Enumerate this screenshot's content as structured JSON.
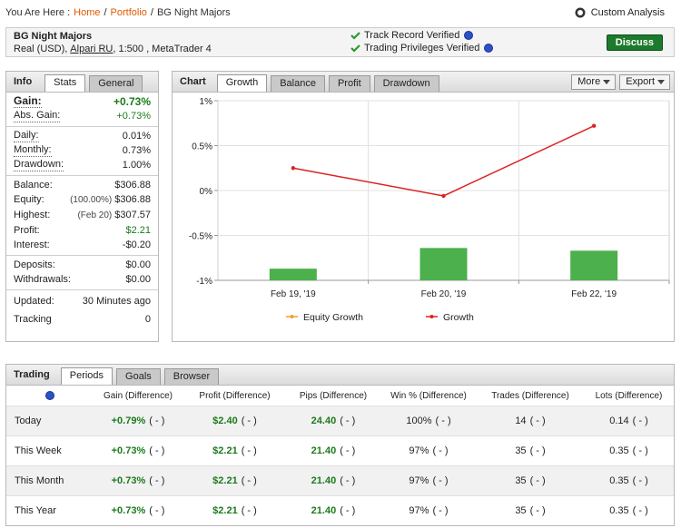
{
  "breadcrumb": {
    "prefix": "You Are Here :",
    "links": [
      "Home",
      "Portfolio"
    ],
    "separator": "/",
    "current": "BG Night Majors"
  },
  "custom_analysis": "Custom Analysis",
  "account": {
    "name": "BG Night Majors",
    "details_pre": "Real (USD),",
    "broker": "Alpari RU",
    "details_post": ", 1:500 , MetaTrader 4",
    "verifications": [
      "Track Record Verified",
      "Trading Privileges Verified"
    ],
    "button": "Discuss"
  },
  "info": {
    "title": "Info",
    "tabs": [
      "Stats",
      "General"
    ],
    "groups": [
      [
        {
          "label": "Gain:",
          "value": "+0.73%"
        },
        {
          "label": "Abs. Gain:",
          "value": "+0.73%"
        }
      ],
      [
        {
          "label": "Daily:",
          "value": "0.01%"
        },
        {
          "label": "Monthly:",
          "value": "0.73%"
        },
        {
          "label": "Drawdown:",
          "value": "1.00%"
        }
      ],
      [
        {
          "label": "Balance:",
          "value": "$306.88"
        },
        {
          "label": "Equity:",
          "note": "(100.00%)",
          "value": "$306.88"
        },
        {
          "label": "Highest:",
          "note": "(Feb 20)",
          "value": "$307.57"
        },
        {
          "label": "Profit:",
          "value": "$2.21"
        },
        {
          "label": "Interest:",
          "value": "-$0.20"
        }
      ],
      [
        {
          "label": "Deposits:",
          "value": "$0.00"
        },
        {
          "label": "Withdrawals:",
          "value": "$0.00"
        }
      ],
      [
        {
          "label": "Updated:",
          "value": "30 Minutes ago"
        },
        {
          "label": "Tracking",
          "value": "0"
        }
      ]
    ]
  },
  "chart_panel": {
    "title": "Chart",
    "tabs": [
      "Growth",
      "Balance",
      "Profit",
      "Drawdown"
    ],
    "menus": [
      "More",
      "Export"
    ]
  },
  "chart_data": {
    "type": "bar",
    "categories": [
      "Feb 19, '19",
      "Feb 20, '19",
      "Feb 22, '19"
    ],
    "ylim": [
      -1,
      1
    ],
    "yticks": [
      {
        "value": 1,
        "label": "1%"
      },
      {
        "value": 0.5,
        "label": "0.5%"
      },
      {
        "value": 0,
        "label": "0%"
      },
      {
        "value": -0.5,
        "label": "-0.5%"
      },
      {
        "value": -1,
        "label": "-1%"
      }
    ],
    "grid": true,
    "series": [
      {
        "type": "bar",
        "color": "#4cb04c",
        "values": [
          -0.87,
          -0.64,
          -0.67
        ]
      },
      {
        "name": "Equity Growth",
        "type": "line",
        "color": "#f0a030",
        "values": [
          null,
          null,
          null
        ]
      },
      {
        "name": "Growth",
        "type": "line",
        "color": "#dd2222",
        "values": [
          0.25,
          -0.06,
          0.72
        ]
      }
    ]
  },
  "trading": {
    "title": "Trading",
    "tabs": [
      "Periods",
      "Goals",
      "Browser"
    ],
    "columns": [
      "Gain (Difference)",
      "Profit (Difference)",
      "Pips (Difference)",
      "Win % (Difference)",
      "Trades (Difference)",
      "Lots (Difference)"
    ],
    "rows": [
      {
        "label": "Today",
        "cells": [
          [
            "+0.79%",
            "( - )"
          ],
          [
            "$2.40",
            "( - )"
          ],
          [
            "24.40",
            "( - )"
          ],
          [
            "100%",
            "( - )"
          ],
          [
            "14",
            "( - )"
          ],
          [
            "0.14",
            "( - )"
          ]
        ]
      },
      {
        "label": "This Week",
        "cells": [
          [
            "+0.73%",
            "( - )"
          ],
          [
            "$2.21",
            "( - )"
          ],
          [
            "21.40",
            "( - )"
          ],
          [
            "97%",
            "( - )"
          ],
          [
            "35",
            "( - )"
          ],
          [
            "0.35",
            "( - )"
          ]
        ]
      },
      {
        "label": "This Month",
        "cells": [
          [
            "+0.73%",
            "( - )"
          ],
          [
            "$2.21",
            "( - )"
          ],
          [
            "21.40",
            "( - )"
          ],
          [
            "97%",
            "( - )"
          ],
          [
            "35",
            "( - )"
          ],
          [
            "0.35",
            "( - )"
          ]
        ]
      },
      {
        "label": "This Year",
        "cells": [
          [
            "+0.73%",
            "( - )"
          ],
          [
            "$2.21",
            "( - )"
          ],
          [
            "21.40",
            "( - )"
          ],
          [
            "97%",
            "( - )"
          ],
          [
            "35",
            "( - )"
          ],
          [
            "0.35",
            "( - )"
          ]
        ]
      }
    ]
  }
}
